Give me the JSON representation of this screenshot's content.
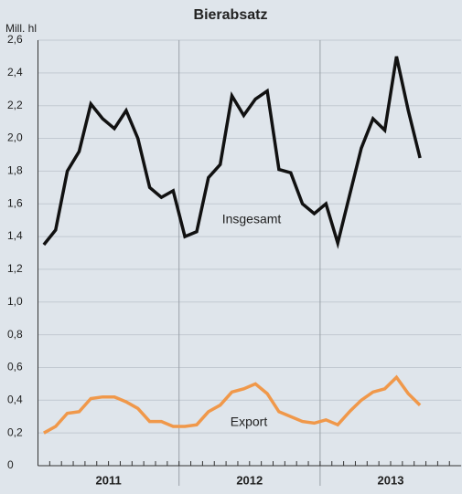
{
  "chart_data": {
    "type": "line",
    "title": "Bierabsatz",
    "y_axis_label": "Mill. hl",
    "categories": [
      null,
      null,
      null,
      null,
      null,
      null,
      null,
      null,
      null,
      null,
      null,
      null,
      null,
      null,
      null,
      null,
      null,
      null,
      null,
      null,
      null,
      null,
      null,
      null,
      null,
      null,
      null,
      null,
      null,
      null,
      null,
      null,
      null
    ],
    "year_labels": [
      "2011",
      "2012",
      "2013"
    ],
    "series": [
      {
        "name": "Insgesamt",
        "color": "#111111",
        "values": [
          1.35,
          1.44,
          1.8,
          1.92,
          2.21,
          2.12,
          2.06,
          2.17,
          2.0,
          1.7,
          1.64,
          1.68,
          1.4,
          1.43,
          1.76,
          1.84,
          2.26,
          2.14,
          2.24,
          2.29,
          1.81,
          1.79,
          1.6,
          1.54,
          1.6,
          1.36,
          1.65,
          1.94,
          2.12,
          2.05,
          2.5,
          2.17,
          1.88
        ]
      },
      {
        "name": "Export",
        "color": "#f0984a",
        "values": [
          0.2,
          0.24,
          0.32,
          0.33,
          0.41,
          0.42,
          0.42,
          0.39,
          0.35,
          0.27,
          0.27,
          0.24,
          0.24,
          0.25,
          0.33,
          0.37,
          0.45,
          0.47,
          0.5,
          0.44,
          0.33,
          0.3,
          0.27,
          0.26,
          0.28,
          0.25,
          0.33,
          0.4,
          0.45,
          0.47,
          0.54,
          0.44,
          0.37
        ]
      }
    ],
    "ylim": [
      0,
      2.6
    ],
    "yticks": [
      0,
      {
        "value": 0.2,
        "label": "0,2"
      },
      {
        "value": 0.4,
        "label": "0,4"
      },
      {
        "value": 0.6,
        "label": "0,6"
      },
      {
        "value": 0.8,
        "label": "0,8"
      },
      {
        "value": 1.0,
        "label": "1,0"
      },
      {
        "value": 1.2,
        "label": "1,2"
      },
      {
        "value": 1.4,
        "label": "1,4"
      },
      {
        "value": 1.6,
        "label": "1,6"
      },
      {
        "value": 1.8,
        "label": "1,8"
      },
      {
        "value": 2.0,
        "label": "2,0"
      },
      {
        "value": 2.2,
        "label": "2,2"
      },
      {
        "value": 2.4,
        "label": "2,4"
      },
      {
        "value": 2.6,
        "label": "2,6"
      }
    ],
    "grid": true
  }
}
